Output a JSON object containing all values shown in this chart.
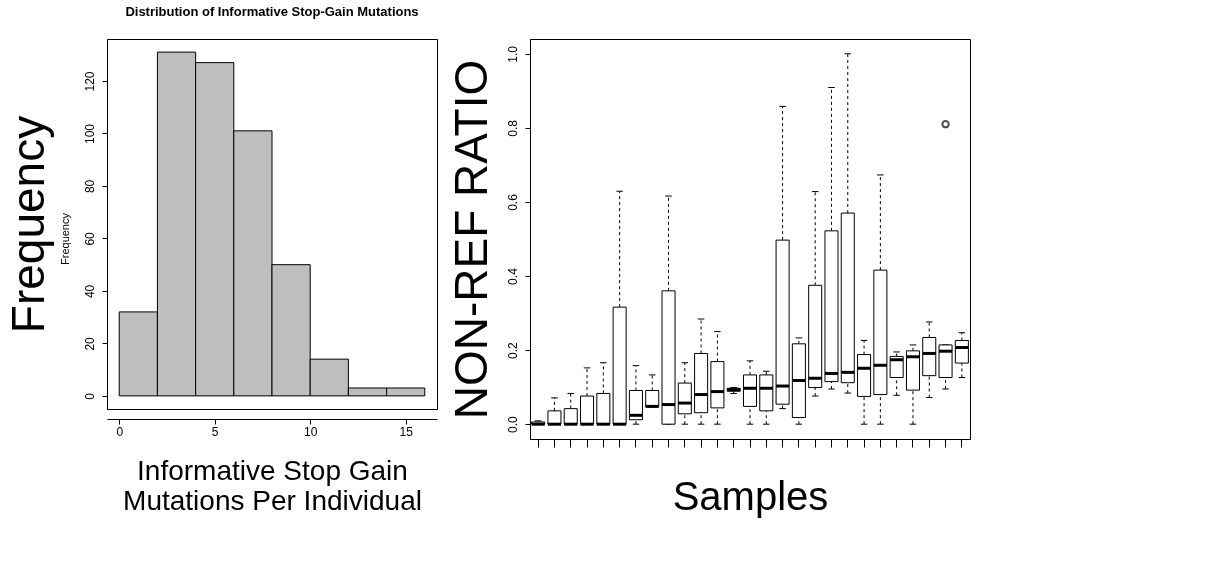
{
  "chart_data": [
    {
      "type": "histogram",
      "title": "Distribution of Informative Stop-Gain Mutations",
      "xlabel": "Informative Stop Gain\nMutations Per Individual",
      "ylabel": "Frequency",
      "annotations": [
        "Frequency"
      ],
      "bins": [
        0,
        2,
        4,
        6,
        8,
        10,
        12,
        14,
        16
      ],
      "values": [
        32,
        131,
        127,
        101,
        50,
        14,
        3,
        3
      ],
      "color": "#bebebe",
      "xlim": [
        -0.64,
        16.64
      ],
      "xticks": [
        0,
        5,
        10,
        15
      ],
      "ylim": [
        -5,
        136
      ],
      "yticks": [
        0,
        20,
        40,
        60,
        80,
        100,
        120
      ],
      "grid": false
    },
    {
      "type": "box",
      "xlabel": "Samples",
      "ylabel": "NON-REF RATIO",
      "color": "#ffffff",
      "categories": [
        null,
        null,
        null,
        null,
        null,
        null,
        null,
        null,
        null,
        null,
        null,
        null,
        null,
        null,
        null,
        null,
        null,
        null,
        null,
        null,
        null,
        null,
        null,
        null,
        null,
        null,
        null
      ],
      "boxes": [
        {
          "low": 0,
          "q1": 0,
          "median": 0,
          "q3": 0.006,
          "high": 0.009
        },
        {
          "low": 0,
          "q1": 0,
          "median": 0,
          "q3": 0.036,
          "high": 0.071
        },
        {
          "low": 0,
          "q1": 0,
          "median": 0,
          "q3": 0.042,
          "high": 0.083
        },
        {
          "low": 0,
          "q1": 0,
          "median": 0,
          "q3": 0.076,
          "high": 0.152
        },
        {
          "low": 0,
          "q1": 0,
          "median": 0,
          "q3": 0.083,
          "high": 0.166
        },
        {
          "low": 0,
          "q1": 0,
          "median": 0,
          "q3": 0.316,
          "high": 0.629
        },
        {
          "low": 0,
          "q1": 0.012,
          "median": 0.024,
          "q3": 0.091,
          "high": 0.158
        },
        {
          "low": 0.047,
          "q1": 0.047,
          "median": 0.048,
          "q3": 0.091,
          "high": 0.133
        },
        {
          "low": 0,
          "q1": 0,
          "median": 0.053,
          "q3": 0.36,
          "high": 0.616
        },
        {
          "low": 0,
          "q1": 0.028,
          "median": 0.057,
          "q3": 0.111,
          "high": 0.166
        },
        {
          "low": 0,
          "q1": 0.031,
          "median": 0.08,
          "q3": 0.191,
          "high": 0.284
        },
        {
          "low": 0,
          "q1": 0.044,
          "median": 0.088,
          "q3": 0.169,
          "high": 0.25
        },
        {
          "low": 0.083,
          "q1": 0.089,
          "median": 0.093,
          "q3": 0.097,
          "high": 0.099
        },
        {
          "low": 0,
          "q1": 0.048,
          "median": 0.097,
          "q3": 0.133,
          "high": 0.171
        },
        {
          "low": 0,
          "q1": 0.036,
          "median": 0.097,
          "q3": 0.133,
          "high": 0.143
        },
        {
          "low": 0.042,
          "q1": 0.054,
          "median": 0.103,
          "q3": 0.497,
          "high": 0.858
        },
        {
          "low": 0,
          "q1": 0.018,
          "median": 0.118,
          "q3": 0.217,
          "high": 0.233
        },
        {
          "low": 0.076,
          "q1": 0.099,
          "median": 0.124,
          "q3": 0.375,
          "high": 0.628
        },
        {
          "low": 0.095,
          "q1": 0.115,
          "median": 0.137,
          "q3": 0.522,
          "high": 0.909
        },
        {
          "low": 0.084,
          "q1": 0.112,
          "median": 0.14,
          "q3": 0.57,
          "high": 1.0
        },
        {
          "low": 0,
          "q1": 0.075,
          "median": 0.151,
          "q3": 0.188,
          "high": 0.226
        },
        {
          "low": 0,
          "q1": 0.08,
          "median": 0.159,
          "q3": 0.416,
          "high": 0.673
        },
        {
          "low": 0.078,
          "q1": 0.126,
          "median": 0.174,
          "q3": 0.183,
          "high": 0.195
        },
        {
          "low": 0,
          "q1": 0.092,
          "median": 0.182,
          "q3": 0.198,
          "high": 0.214
        },
        {
          "low": 0.072,
          "q1": 0.131,
          "median": 0.191,
          "q3": 0.234,
          "high": 0.276
        },
        {
          "low": 0.095,
          "q1": 0.126,
          "median": 0.197,
          "q3": 0.214,
          "high": 0.214,
          "outliers": [
            0.81
          ]
        },
        {
          "low": 0.126,
          "q1": 0.165,
          "median": 0.207,
          "q3": 0.226,
          "high": 0.247
        }
      ],
      "ylim": [
        -0.04,
        1.04
      ],
      "yticks": [
        {
          "value": 0,
          "label": "0.0"
        },
        {
          "value": 0.2,
          "label": "0.2"
        },
        {
          "value": 0.4,
          "label": "0.4"
        },
        {
          "value": 0.6,
          "label": "0.6"
        },
        {
          "value": 0.8,
          "label": "0.8"
        },
        {
          "value": 1,
          "label": "1.0"
        }
      ],
      "tick_labels": "y",
      "grid": false
    }
  ]
}
